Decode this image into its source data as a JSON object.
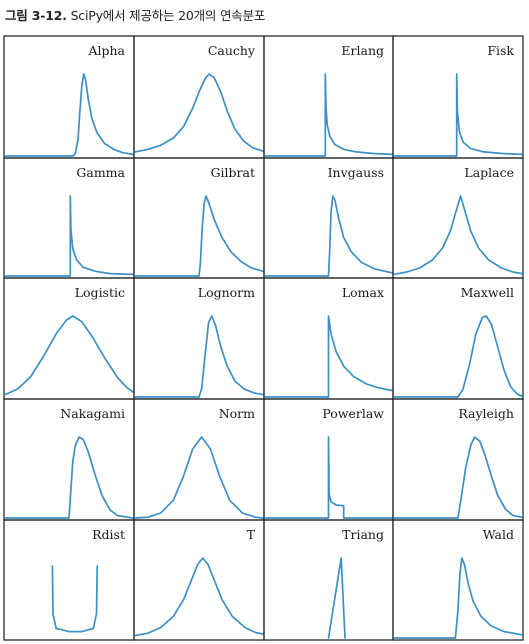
{
  "caption": {
    "number": "그림 3-12.",
    "text": "SciPy에서 제공하는 20개의 연속분포"
  },
  "chart_data": {
    "type": "line",
    "layout": "grid of small multiples, 5 rows x 4 columns",
    "axes": "hidden (no ticks, no tick labels)",
    "series_color": "#3d8fc6",
    "panels": [
      {
        "title": "Alpha",
        "dist": "alpha",
        "xlim": [
          0,
          1
        ],
        "points": [
          [
            0,
            0
          ],
          [
            0.53,
            0
          ],
          [
            0.55,
            0.03
          ],
          [
            0.57,
            0.2
          ],
          [
            0.585,
            0.55
          ],
          [
            0.6,
            0.85
          ],
          [
            0.615,
            1.0
          ],
          [
            0.63,
            0.93
          ],
          [
            0.65,
            0.7
          ],
          [
            0.68,
            0.45
          ],
          [
            0.72,
            0.28
          ],
          [
            0.78,
            0.15
          ],
          [
            0.85,
            0.08
          ],
          [
            0.92,
            0.04
          ],
          [
            1,
            0.02
          ]
        ]
      },
      {
        "title": "Cauchy",
        "dist": "cauchy",
        "xlim": [
          0,
          1
        ],
        "points": [
          [
            0,
            0.05
          ],
          [
            0.1,
            0.08
          ],
          [
            0.2,
            0.13
          ],
          [
            0.3,
            0.22
          ],
          [
            0.38,
            0.36
          ],
          [
            0.45,
            0.58
          ],
          [
            0.5,
            0.78
          ],
          [
            0.55,
            0.95
          ],
          [
            0.58,
            1.0
          ],
          [
            0.62,
            0.95
          ],
          [
            0.67,
            0.78
          ],
          [
            0.72,
            0.55
          ],
          [
            0.78,
            0.33
          ],
          [
            0.85,
            0.18
          ],
          [
            0.92,
            0.1
          ],
          [
            1,
            0.06
          ]
        ]
      },
      {
        "title": "Erlang",
        "dist": "erlang",
        "xlim": [
          0,
          1
        ],
        "points": [
          [
            0,
            0
          ],
          [
            0.475,
            0
          ],
          [
            0.475,
            1.0
          ],
          [
            0.48,
            0.6
          ],
          [
            0.49,
            0.38
          ],
          [
            0.51,
            0.24
          ],
          [
            0.55,
            0.14
          ],
          [
            0.62,
            0.08
          ],
          [
            0.72,
            0.05
          ],
          [
            0.85,
            0.03
          ],
          [
            1,
            0.02
          ]
        ]
      },
      {
        "title": "Fisk",
        "dist": "fisk",
        "xlim": [
          0,
          1
        ],
        "points": [
          [
            0,
            0
          ],
          [
            0.49,
            0
          ],
          [
            0.49,
            1.0
          ],
          [
            0.495,
            0.55
          ],
          [
            0.51,
            0.3
          ],
          [
            0.54,
            0.17
          ],
          [
            0.6,
            0.09
          ],
          [
            0.7,
            0.05
          ],
          [
            0.85,
            0.03
          ],
          [
            1,
            0.02
          ]
        ]
      },
      {
        "title": "Gamma",
        "dist": "gamma",
        "xlim": [
          0,
          1
        ],
        "points": [
          [
            0,
            0
          ],
          [
            0.51,
            0
          ],
          [
            0.51,
            1.0
          ],
          [
            0.515,
            0.58
          ],
          [
            0.53,
            0.34
          ],
          [
            0.56,
            0.2
          ],
          [
            0.61,
            0.11
          ],
          [
            0.7,
            0.06
          ],
          [
            0.82,
            0.03
          ],
          [
            1,
            0.02
          ]
        ]
      },
      {
        "title": "Gilbrat",
        "dist": "gilbrat",
        "xlim": [
          0,
          1
        ],
        "points": [
          [
            0,
            0
          ],
          [
            0.5,
            0
          ],
          [
            0.51,
            0.15
          ],
          [
            0.525,
            0.6
          ],
          [
            0.54,
            0.9
          ],
          [
            0.555,
            1.0
          ],
          [
            0.58,
            0.9
          ],
          [
            0.62,
            0.7
          ],
          [
            0.68,
            0.48
          ],
          [
            0.75,
            0.3
          ],
          [
            0.83,
            0.18
          ],
          [
            0.91,
            0.1
          ],
          [
            1,
            0.06
          ]
        ]
      },
      {
        "title": "Invgauss",
        "dist": "invgauss",
        "xlim": [
          0,
          1
        ],
        "points": [
          [
            0,
            0
          ],
          [
            0.5,
            0
          ],
          [
            0.51,
            0.35
          ],
          [
            0.52,
            0.8
          ],
          [
            0.535,
            1.0
          ],
          [
            0.55,
            0.95
          ],
          [
            0.58,
            0.72
          ],
          [
            0.62,
            0.48
          ],
          [
            0.68,
            0.3
          ],
          [
            0.76,
            0.17
          ],
          [
            0.86,
            0.09
          ],
          [
            1,
            0.04
          ]
        ]
      },
      {
        "title": "Laplace",
        "dist": "laplace",
        "xlim": [
          0,
          1
        ],
        "points": [
          [
            0,
            0.02
          ],
          [
            0.1,
            0.05
          ],
          [
            0.2,
            0.1
          ],
          [
            0.3,
            0.2
          ],
          [
            0.38,
            0.35
          ],
          [
            0.44,
            0.56
          ],
          [
            0.48,
            0.78
          ],
          [
            0.52,
            1.0
          ],
          [
            0.56,
            0.78
          ],
          [
            0.6,
            0.56
          ],
          [
            0.66,
            0.35
          ],
          [
            0.74,
            0.2
          ],
          [
            0.84,
            0.1
          ],
          [
            0.93,
            0.05
          ],
          [
            1,
            0.03
          ]
        ]
      },
      {
        "title": "Logistic",
        "dist": "logistic",
        "xlim": [
          0,
          1
        ],
        "points": [
          [
            0,
            0.03
          ],
          [
            0.1,
            0.1
          ],
          [
            0.2,
            0.25
          ],
          [
            0.3,
            0.5
          ],
          [
            0.4,
            0.78
          ],
          [
            0.48,
            0.95
          ],
          [
            0.53,
            1.0
          ],
          [
            0.6,
            0.93
          ],
          [
            0.68,
            0.75
          ],
          [
            0.78,
            0.48
          ],
          [
            0.88,
            0.24
          ],
          [
            0.95,
            0.12
          ],
          [
            1,
            0.06
          ]
        ]
      },
      {
        "title": "Lognorm",
        "dist": "lognorm",
        "xlim": [
          0,
          1
        ],
        "points": [
          [
            0,
            0
          ],
          [
            0.5,
            0
          ],
          [
            0.52,
            0.1
          ],
          [
            0.55,
            0.55
          ],
          [
            0.575,
            0.92
          ],
          [
            0.6,
            1.0
          ],
          [
            0.63,
            0.88
          ],
          [
            0.67,
            0.62
          ],
          [
            0.72,
            0.38
          ],
          [
            0.78,
            0.2
          ],
          [
            0.85,
            0.1
          ],
          [
            0.93,
            0.05
          ],
          [
            1,
            0.03
          ]
        ]
      },
      {
        "title": "Lomax",
        "dist": "lomax",
        "xlim": [
          0,
          1
        ],
        "points": [
          [
            0,
            0
          ],
          [
            0.5,
            0
          ],
          [
            0.5,
            1.0
          ],
          [
            0.52,
            0.78
          ],
          [
            0.56,
            0.56
          ],
          [
            0.62,
            0.38
          ],
          [
            0.7,
            0.25
          ],
          [
            0.8,
            0.16
          ],
          [
            0.9,
            0.11
          ],
          [
            1,
            0.08
          ]
        ]
      },
      {
        "title": "Maxwell",
        "dist": "maxwell",
        "xlim": [
          0,
          1
        ],
        "points": [
          [
            0,
            0
          ],
          [
            0.5,
            0
          ],
          [
            0.54,
            0.1
          ],
          [
            0.59,
            0.4
          ],
          [
            0.64,
            0.78
          ],
          [
            0.69,
            0.98
          ],
          [
            0.72,
            1.0
          ],
          [
            0.76,
            0.9
          ],
          [
            0.81,
            0.62
          ],
          [
            0.86,
            0.33
          ],
          [
            0.91,
            0.13
          ],
          [
            0.96,
            0.04
          ],
          [
            1,
            0.01
          ]
        ]
      },
      {
        "title": "Nakagami",
        "dist": "nakagami",
        "xlim": [
          0,
          1
        ],
        "points": [
          [
            0,
            0
          ],
          [
            0.5,
            0
          ],
          [
            0.515,
            0.35
          ],
          [
            0.53,
            0.7
          ],
          [
            0.55,
            0.9
          ],
          [
            0.58,
            1.0
          ],
          [
            0.61,
            0.97
          ],
          [
            0.65,
            0.82
          ],
          [
            0.7,
            0.55
          ],
          [
            0.76,
            0.27
          ],
          [
            0.82,
            0.1
          ],
          [
            0.88,
            0.03
          ],
          [
            1,
            0.0
          ]
        ]
      },
      {
        "title": "Norm",
        "dist": "norm",
        "xlim": [
          0,
          1
        ],
        "points": [
          [
            0,
            0
          ],
          [
            0.1,
            0.01
          ],
          [
            0.2,
            0.06
          ],
          [
            0.3,
            0.22
          ],
          [
            0.38,
            0.52
          ],
          [
            0.45,
            0.85
          ],
          [
            0.52,
            1.0
          ],
          [
            0.59,
            0.85
          ],
          [
            0.66,
            0.52
          ],
          [
            0.74,
            0.22
          ],
          [
            0.84,
            0.06
          ],
          [
            0.94,
            0.01
          ],
          [
            1,
            0
          ]
        ]
      },
      {
        "title": "Powerlaw",
        "dist": "powerlaw",
        "xlim": [
          0,
          1
        ],
        "points": [
          [
            0,
            0
          ],
          [
            0.5,
            0
          ],
          [
            0.5,
            1.0
          ],
          [
            0.505,
            0.3
          ],
          [
            0.52,
            0.2
          ],
          [
            0.56,
            0.16
          ],
          [
            0.62,
            0.15
          ],
          [
            0.62,
            0.0
          ],
          [
            1,
            0
          ]
        ]
      },
      {
        "title": "Rayleigh",
        "dist": "rayleigh",
        "xlim": [
          0,
          1
        ],
        "points": [
          [
            0,
            0
          ],
          [
            0.5,
            0
          ],
          [
            0.53,
            0.3
          ],
          [
            0.56,
            0.62
          ],
          [
            0.6,
            0.9
          ],
          [
            0.63,
            1.0
          ],
          [
            0.67,
            0.95
          ],
          [
            0.71,
            0.78
          ],
          [
            0.76,
            0.52
          ],
          [
            0.81,
            0.28
          ],
          [
            0.87,
            0.11
          ],
          [
            0.93,
            0.03
          ],
          [
            1,
            0.01
          ]
        ]
      },
      {
        "title": "Rdist",
        "dist": "rdist",
        "xlim": [
          0,
          1
        ],
        "points": [
          [
            0.37,
            0.9
          ],
          [
            0.375,
            0.3
          ],
          [
            0.4,
            0.12
          ],
          [
            0.5,
            0.08
          ],
          [
            0.6,
            0.08
          ],
          [
            0.69,
            0.12
          ],
          [
            0.715,
            0.3
          ],
          [
            0.72,
            0.9
          ]
        ]
      },
      {
        "title": "T",
        "dist": "t",
        "xlim": [
          0,
          1
        ],
        "points": [
          [
            0,
            0.03
          ],
          [
            0.1,
            0.06
          ],
          [
            0.2,
            0.13
          ],
          [
            0.3,
            0.27
          ],
          [
            0.38,
            0.48
          ],
          [
            0.44,
            0.72
          ],
          [
            0.49,
            0.92
          ],
          [
            0.53,
            1.0
          ],
          [
            0.57,
            0.92
          ],
          [
            0.62,
            0.72
          ],
          [
            0.68,
            0.48
          ],
          [
            0.76,
            0.27
          ],
          [
            0.86,
            0.13
          ],
          [
            0.94,
            0.07
          ],
          [
            1,
            0.05
          ]
        ]
      },
      {
        "title": "Triang",
        "dist": "triang",
        "xlim": [
          0,
          1
        ],
        "points": [
          [
            0.5,
            0
          ],
          [
            0.6,
            1.0
          ],
          [
            0.63,
            0
          ]
        ]
      },
      {
        "title": "Wald",
        "dist": "wald",
        "xlim": [
          0,
          1
        ],
        "points": [
          [
            0,
            0
          ],
          [
            0.48,
            0
          ],
          [
            0.5,
            0.35
          ],
          [
            0.515,
            0.8
          ],
          [
            0.53,
            1.0
          ],
          [
            0.55,
            0.92
          ],
          [
            0.58,
            0.68
          ],
          [
            0.62,
            0.45
          ],
          [
            0.68,
            0.27
          ],
          [
            0.76,
            0.15
          ],
          [
            0.86,
            0.08
          ],
          [
            1,
            0.04
          ]
        ]
      }
    ]
  }
}
